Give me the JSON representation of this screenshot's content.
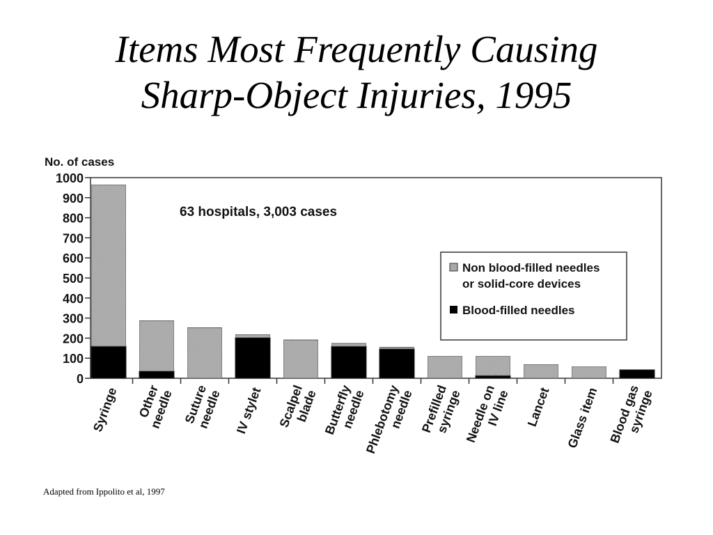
{
  "title_lines": [
    "Items Most Frequently Causing",
    "Sharp-Object Injuries, 1995"
  ],
  "source": "Adapted from Ippolito et al, 1997",
  "chart_data": {
    "type": "bar",
    "stacked": true,
    "ylabel": "No. of cases",
    "ylim": [
      0,
      1000
    ],
    "yticks": [
      0,
      100,
      200,
      300,
      400,
      500,
      600,
      700,
      800,
      900,
      1000
    ],
    "annotation": "63 hospitals,  3,003 cases",
    "legend_position": "right",
    "categories": [
      [
        "Syringe"
      ],
      [
        "Other",
        "needle"
      ],
      [
        "Suture",
        "needle"
      ],
      [
        "IV stylet"
      ],
      [
        "Scalpel",
        "blade"
      ],
      [
        "Butterfly",
        "needle"
      ],
      [
        "Phlebotomy",
        "needle"
      ],
      [
        "Prefilled",
        "syringe"
      ],
      [
        "Needle on",
        "IV line"
      ],
      [
        "Lancet"
      ],
      [
        "Glass item"
      ],
      [
        "Blood gas",
        "syringe"
      ]
    ],
    "series": [
      {
        "name": "Blood-filled needles",
        "color": "#000000",
        "values": [
          159,
          35,
          0,
          202,
          0,
          159,
          146,
          0,
          13,
          0,
          0,
          42
        ]
      },
      {
        "name": "Non blood-filled needles or solid-core devices",
        "legend_lines": [
          "Non blood-filled needles",
          "or solid-core devices"
        ],
        "color": "#a8a8a8",
        "values": [
          806,
          252,
          252,
          16,
          191,
          15,
          9,
          111,
          98,
          69,
          59,
          0
        ]
      }
    ]
  }
}
